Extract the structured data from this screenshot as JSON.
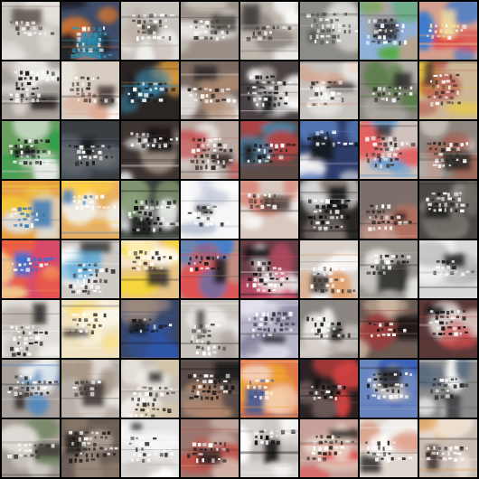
{
  "grid": {
    "rows": 8,
    "cols": 8,
    "tiles": [
      [
        "#c9c3bd",
        "#e8e6e2",
        "#5a4f48",
        "#e8e2dc"
      ],
      [
        "#3f4c68",
        "#d8742e",
        "#2f8fb0",
        "#1c1c22"
      ],
      [
        "#c7c3bd",
        "#eeeeea",
        "#4d4a45",
        "#bdb0a6"
      ],
      [
        "#9a8f86",
        "#f2f0ee",
        "#453f3a",
        "#c8c2ba"
      ],
      [
        "#bdb7ae",
        "#ffffff",
        "#3c3835",
        "#8f8880"
      ],
      [
        "#8e8c86",
        "#c9c7c2",
        "#4b4a47",
        "#d9d8d4"
      ],
      [
        "#8fb0d9",
        "#55aa44",
        "#2b2b33",
        "#b7a28f"
      ],
      [
        "#d4a08c",
        "#e04545",
        "#f2e0a0",
        "#3d7acc"
      ],
      [
        "#a8a29c",
        "#f4f4f2",
        "#1d1b1a",
        "#d7cfc8"
      ],
      [
        "#d7cdc2",
        "#f5f3ef",
        "#3b3430",
        "#e0a890"
      ],
      [
        "#2a2523",
        "#e39f39",
        "#1b1b1f",
        "#3f91b8"
      ],
      [
        "#7a6a60",
        "#ffffff",
        "#2c2624",
        "#b08c72"
      ],
      [
        "#4a4242",
        "#ffffff",
        "#120f10",
        "#d6cfc9"
      ],
      [
        "#c6c2bc",
        "#fbfbfa",
        "#3e3a37",
        "#d8a088"
      ],
      [
        "#8c8880",
        "#4e7a3a",
        "#2f2c29",
        "#b5b1aa"
      ],
      [
        "#cdb796",
        "#e8c84a",
        "#4a3a2f",
        "#b04545"
      ],
      [
        "#6aa060",
        "#2ea04a",
        "#141418",
        "#e9ece8"
      ],
      [
        "#3a3e42",
        "#5a6470",
        "#15171a",
        "#7d7a76"
      ],
      [
        "#3d3431",
        "#efefef",
        "#0e0c0c",
        "#9a8a80"
      ],
      [
        "#b8a8a0",
        "#e9e4e0",
        "#2a2220",
        "#c45050"
      ],
      [
        "#5c4c48",
        "#b04444",
        "#1f1a19",
        "#4a7fa0"
      ],
      [
        "#2e3c6a",
        "#f4f4f6",
        "#121418",
        "#5f86c4"
      ],
      [
        "#d0c2bd",
        "#e06060",
        "#3a3433",
        "#5a9ad0"
      ],
      [
        "#8e8680",
        "#c9c1bb",
        "#2c2826",
        "#a45e4c"
      ],
      [
        "#e8a040",
        "#f4d23a",
        "#3a79b4",
        "#dfe0e0"
      ],
      [
        "#e6b064",
        "#ffd040",
        "#3f7fc2",
        "#f0efeb"
      ],
      [
        "#3a3f3a",
        "#ffffff",
        "#0d0f0d",
        "#8aa07a"
      ],
      [
        "#f6f6f6",
        "#ffffff",
        "#2d2e34",
        "#b8c2d2"
      ],
      [
        "#d9c8bf",
        "#f8f6f4",
        "#4a3e3a",
        "#d8887a"
      ],
      [
        "#2a2624",
        "#f3f3f3",
        "#0b0a0a",
        "#8a8079"
      ],
      [
        "#7c6f6a",
        "#d2a090",
        "#201b1a",
        "#b07060"
      ],
      [
        "#4a4744",
        "#8b8680",
        "#1a1816",
        "#6f6a64"
      ],
      [
        "#d84a6a",
        "#f0603a",
        "#3a6ed8",
        "#f2c48a"
      ],
      [
        "#cfc9c4",
        "#ffffff",
        "#3b3633",
        "#4fa4d4"
      ],
      [
        "#e8c48a",
        "#f8d830",
        "#2f2a28",
        "#ffffff"
      ],
      [
        "#c28c80",
        "#e04f4f",
        "#1a1616",
        "#2f7fd0"
      ],
      [
        "#6a4048",
        "#f2f2f2",
        "#0d0b0c",
        "#d44c6a"
      ],
      [
        "#d8cfc8",
        "#ffffff",
        "#3c3632",
        "#e0a070"
      ],
      [
        "#9a9690",
        "#e8e6e2",
        "#24221f",
        "#cfcbc6"
      ],
      [
        "#d8d8d8",
        "#ffffff",
        "#202020",
        "#a8a8a8"
      ],
      [
        "#e2ddd8",
        "#ffffff",
        "#2a2623",
        "#b9b2aa"
      ],
      [
        "#f0e2c0",
        "#ffe070",
        "#403a35",
        "#fbf8f0"
      ],
      [
        "#3a4668",
        "#2e56a8",
        "#15171d",
        "#9c8a80"
      ],
      [
        "#c9c3bd",
        "#f4f2f0",
        "#4a4440",
        "#a8a09a"
      ],
      [
        "#b9b6c8",
        "#e8e6f0",
        "#2f2d38",
        "#8a86a0"
      ],
      [
        "#8c8682",
        "#f0eeeb",
        "#101010",
        "#d2cac4"
      ],
      [
        "#6a5a52",
        "#e0c8b0",
        "#141212",
        "#9a3a3a"
      ],
      [
        "#5a3838",
        "#c84a4a",
        "#121010",
        "#d7cfca"
      ],
      [
        "#a8a09a",
        "#f2f2f2",
        "#2a2624",
        "#4a86c0"
      ],
      [
        "#b8b0a8",
        "#e8e2dc",
        "#3a3430",
        "#a89888"
      ],
      [
        "#c8c0b6",
        "#f6f4f0",
        "#3a3530",
        "#d6c6a8"
      ],
      [
        "#5a4c48",
        "#b88a70",
        "#1a1716",
        "#8a7a70"
      ],
      [
        "#e07a4a",
        "#f0a830",
        "#3d5a9a",
        "#f4d4c0"
      ],
      [
        "#2a2222",
        "#d04040",
        "#0b0a0a",
        "#6c5a58"
      ],
      [
        "#6a86c0",
        "#3a62b8",
        "#1a1c22",
        "#c8c4c0"
      ],
      [
        "#8a8a88",
        "#f4f4f4",
        "#2a2a2a",
        "#5a6a80"
      ],
      [
        "#a39c94",
        "#e4e0da",
        "#3a352f",
        "#7a8a6a"
      ],
      [
        "#6a5e56",
        "#b8a898",
        "#1f1b18",
        "#8a7a6a"
      ],
      [
        "#e6e4e2",
        "#ffffff",
        "#3a3838",
        "#c8c2be"
      ],
      [
        "#9a7870",
        "#d8c4b8",
        "#2a2220",
        "#c05048"
      ],
      [
        "#d8d4d2",
        "#ffffff",
        "#080808",
        "#b4aaa4"
      ],
      [
        "#c8a09a",
        "#e04a4a",
        "#2c2422",
        "#e8d8c8"
      ],
      [
        "#e0d8d0",
        "#ffffff",
        "#2e2a28",
        "#d88a70"
      ],
      [
        "#c8bcb2",
        "#f0e8e0",
        "#3a3028",
        "#e6a04a"
      ]
    ]
  }
}
